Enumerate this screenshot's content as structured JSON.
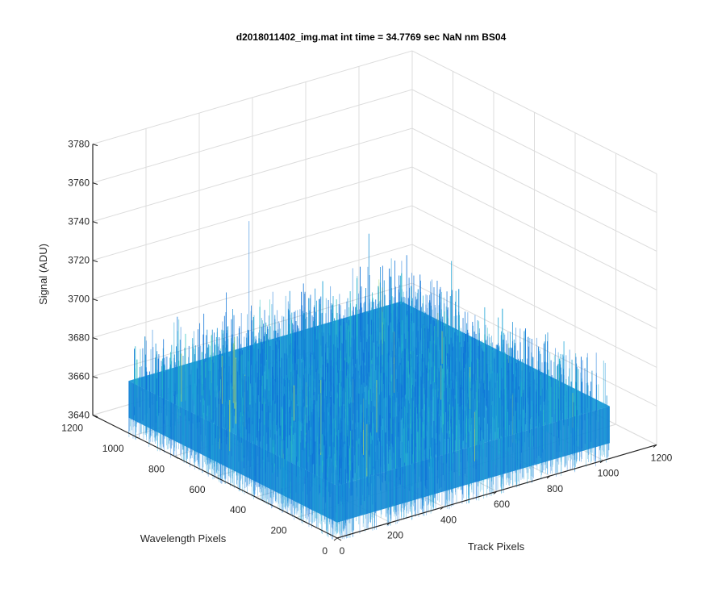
{
  "chart_data": {
    "type": "surface",
    "title": "d2018011402_img.mat int time = 34.7769 sec  NaN nm BS04",
    "xlabel": "Track Pixels",
    "ylabel": "Wavelength Pixels",
    "zlabel": "Signal (ADU)",
    "xlim": [
      0,
      1200
    ],
    "ylim": [
      0,
      1200
    ],
    "zlim": [
      3640,
      3780
    ],
    "xticks": [
      "0",
      "200",
      "400",
      "600",
      "800",
      "1000",
      "1200"
    ],
    "yticks": [
      "0",
      "200",
      "400",
      "600",
      "800",
      "1000",
      "1200"
    ],
    "zticks": [
      "3640",
      "3660",
      "3680",
      "3700",
      "3720",
      "3740",
      "3760",
      "3780"
    ],
    "surface": {
      "x_range": [
        0,
        1024
      ],
      "y_range": [
        0,
        1024
      ],
      "z_mean": 3667,
      "z_noise_min": 3648,
      "z_noise_max": 3690,
      "z_max_spike": 3745
    },
    "grid": true,
    "colormap": "parula",
    "colors": {
      "low": "#0f73d8",
      "mid": "#1aa3d6",
      "high": "#a6d66a",
      "axis": "#262626",
      "grid": "#dcdcdc"
    }
  }
}
